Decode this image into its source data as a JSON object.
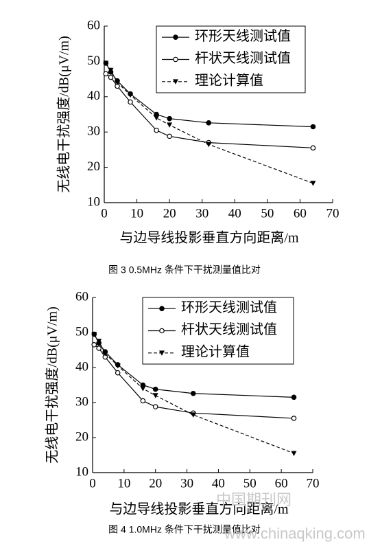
{
  "charts_note_free": null,
  "chart_data": [
    {
      "type": "line",
      "caption": "图 3 0.5MHz 条件下干扰测量值比对",
      "xlabel": "与边导线投影垂直方向距离/m",
      "ylabel": "无线电干扰强度/dB(μV/m)",
      "x": [
        0.5,
        2,
        4,
        8,
        16,
        20,
        32,
        64
      ],
      "series": [
        {
          "name": "环形天线测试值",
          "color": "#000000",
          "marker": "filled-circle",
          "linestyle": "solid",
          "values": [
            49.5,
            47,
            44.5,
            40.8,
            35,
            33.8,
            32.6,
            31.5
          ]
        },
        {
          "name": "杆状天线测试值",
          "color": "#000000",
          "marker": "open-circle",
          "linestyle": "solid",
          "values": [
            46.5,
            45.5,
            43,
            38.5,
            30.5,
            28.8,
            27,
            25.5
          ]
        },
        {
          "name": "理论计算值",
          "color": "#000000",
          "marker": "down-triangle",
          "linestyle": "dashed",
          "values": [
            49.5,
            47.5,
            44,
            40.5,
            34,
            32,
            26.5,
            15.5
          ]
        }
      ],
      "xlim": [
        0,
        70
      ],
      "xticks": [
        0,
        10,
        20,
        30,
        40,
        50,
        60,
        70
      ],
      "ylim": [
        10,
        60
      ],
      "yticks": [
        10,
        20,
        30,
        40,
        50,
        60
      ],
      "legend": "upper right",
      "grid": false
    },
    {
      "type": "line",
      "caption": "图 4 1.0MHz 条件下干扰测量值比对",
      "xlabel": "与边导线投影垂直方向距离/m",
      "ylabel": "无线电干扰强度/dB(μV/m)",
      "x": [
        0.5,
        2,
        4,
        8,
        16,
        20,
        32,
        64
      ],
      "series": [
        {
          "name": "环形天线测试值",
          "color": "#000000",
          "marker": "filled-circle",
          "linestyle": "solid",
          "values": [
            49.5,
            47,
            44.5,
            40.8,
            35,
            33.8,
            32.6,
            31.5
          ]
        },
        {
          "name": "杆状天线测试值",
          "color": "#000000",
          "marker": "open-circle",
          "linestyle": "solid",
          "values": [
            46.5,
            45.5,
            43,
            38.5,
            30.5,
            28.8,
            27,
            25.5
          ]
        },
        {
          "name": "理论计算值",
          "color": "#000000",
          "marker": "down-triangle",
          "linestyle": "dashed",
          "values": [
            49.5,
            47.5,
            44,
            40.5,
            34,
            32,
            26.5,
            15.5
          ]
        }
      ],
      "xlim": [
        0,
        70
      ],
      "xticks": [
        0,
        10,
        20,
        30,
        40,
        50,
        60,
        70
      ],
      "ylim": [
        10,
        60
      ],
      "yticks": [
        10,
        20,
        30,
        40,
        50,
        60
      ],
      "legend": "upper right",
      "grid": false
    }
  ],
  "watermark": [
    "中国期刊网",
    "www.chinaqking.com"
  ]
}
